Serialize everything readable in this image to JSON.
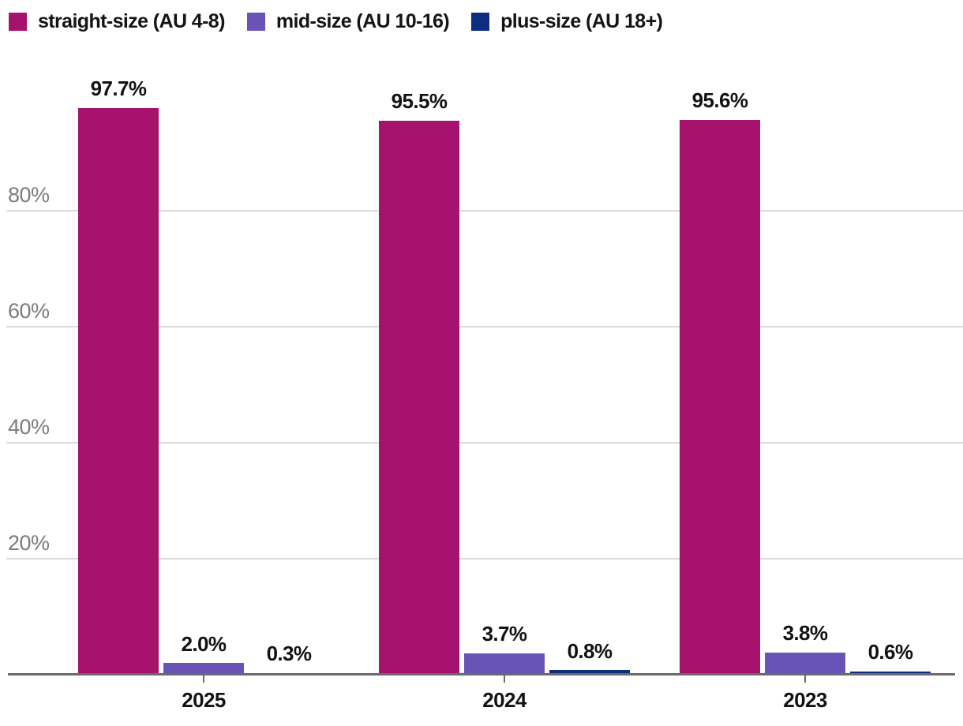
{
  "chart_data": {
    "type": "bar",
    "categories": [
      "2025",
      "2024",
      "2023"
    ],
    "series": [
      {
        "name": "straight-size (AU 4-8)",
        "color": "#a5136e",
        "values": [
          97.7,
          95.5,
          95.6
        ]
      },
      {
        "name": "mid-size (AU 10-16)",
        "color": "#6854b7",
        "values": [
          2.0,
          3.7,
          3.8
        ]
      },
      {
        "name": "plus-size (AU 18+)",
        "color": "#0f2d80",
        "values": [
          0.3,
          0.8,
          0.6
        ]
      }
    ],
    "value_labels": [
      [
        "97.7%",
        "95.5%",
        "95.6%"
      ],
      [
        "2.0%",
        "3.7%",
        "3.8%"
      ],
      [
        "0.3%",
        "0.8%",
        "0.6%"
      ]
    ],
    "title": "",
    "xlabel": "",
    "ylabel": "",
    "y_axis": {
      "ticks": [
        20,
        40,
        60,
        80
      ],
      "tick_labels": [
        "20%",
        "40%",
        "60%",
        "80%"
      ],
      "min": 0,
      "max": 100,
      "gridlines": true
    },
    "legend_position": "top-left",
    "colors": {
      "gridline": "#d9d9d9",
      "axis_line": "#6a6a6a",
      "y_tick_label": "#7b7b7b",
      "text": "#121212",
      "background": "#ffffff"
    }
  }
}
